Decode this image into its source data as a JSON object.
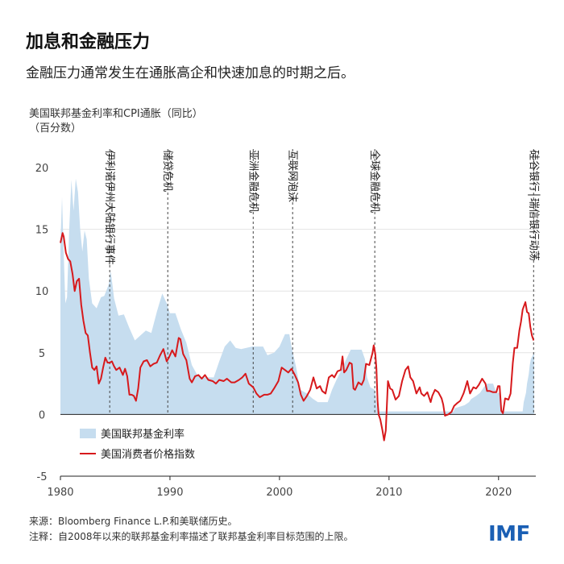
{
  "header": {
    "title": "加息和金融压力",
    "subtitle": "金融压力通常发生在通胀高企和快速加息的时期之后。"
  },
  "axis_title": {
    "line1": "美国联邦基金利率和CPI通胀（同比）",
    "line2": "（百分数）"
  },
  "footer": {
    "source": "来源：Bloomberg Finance L.P.和美联储历史。",
    "note": "注释：自2008年以来的联邦基金利率描述了联邦基金利率目标范围的上限。"
  },
  "logo": "IMF",
  "colors": {
    "fed_fill": "#c6ddef",
    "cpi_line": "#d7191c",
    "event_line": "#444444"
  },
  "chart_data": {
    "type": "area+line",
    "xlim": [
      1980,
      2023.4
    ],
    "ylim": [
      -5,
      20
    ],
    "x_ticks": [
      1980,
      1990,
      2000,
      2010,
      2020
    ],
    "y_ticks": [
      -5,
      0,
      5,
      10,
      15,
      20
    ],
    "legend": {
      "placement": "bottom-left",
      "entries": [
        "美国联邦基金利率",
        "美国消费者价格指数"
      ]
    },
    "events": [
      {
        "x": 1984.5,
        "label": "伊利诺伊州大陆银行事件"
      },
      {
        "x": 1989.8,
        "label": "储贷危机"
      },
      {
        "x": 1997.6,
        "label": "亚洲金融危机"
      },
      {
        "x": 2001.2,
        "label": "互联网泡沫"
      },
      {
        "x": 2008.7,
        "label": "全球金融危机"
      },
      {
        "x": 2023.2,
        "label": "硅谷银行|瑞信银行动荡"
      }
    ],
    "series": [
      {
        "name": "美国联邦基金利率",
        "kind": "area",
        "points": [
          [
            1980.0,
            13.8
          ],
          [
            1980.15,
            17.6
          ],
          [
            1980.3,
            13.0
          ],
          [
            1980.45,
            9.0
          ],
          [
            1980.6,
            9.5
          ],
          [
            1980.8,
            15.0
          ],
          [
            1981.0,
            19.0
          ],
          [
            1981.2,
            16.5
          ],
          [
            1981.4,
            19.1
          ],
          [
            1981.6,
            18.0
          ],
          [
            1981.8,
            15.0
          ],
          [
            1982.0,
            13.2
          ],
          [
            1982.2,
            14.9
          ],
          [
            1982.4,
            14.2
          ],
          [
            1982.6,
            11.0
          ],
          [
            1982.9,
            9.0
          ],
          [
            1983.3,
            8.6
          ],
          [
            1983.7,
            9.5
          ],
          [
            1984.0,
            9.6
          ],
          [
            1984.4,
            10.5
          ],
          [
            1984.6,
            11.6
          ],
          [
            1984.9,
            9.4
          ],
          [
            1985.3,
            8.0
          ],
          [
            1985.8,
            8.1
          ],
          [
            1986.3,
            7.0
          ],
          [
            1986.8,
            6.0
          ],
          [
            1987.3,
            6.4
          ],
          [
            1987.8,
            6.8
          ],
          [
            1988.3,
            6.6
          ],
          [
            1988.8,
            8.3
          ],
          [
            1989.3,
            9.8
          ],
          [
            1989.7,
            9.0
          ],
          [
            1990.0,
            8.2
          ],
          [
            1990.5,
            8.2
          ],
          [
            1991.0,
            6.9
          ],
          [
            1991.5,
            5.8
          ],
          [
            1992.0,
            4.0
          ],
          [
            1992.5,
            3.2
          ],
          [
            1993.0,
            3.0
          ],
          [
            1994.0,
            3.0
          ],
          [
            1994.5,
            4.3
          ],
          [
            1995.0,
            5.5
          ],
          [
            1995.5,
            6.0
          ],
          [
            1996.0,
            5.4
          ],
          [
            1996.5,
            5.3
          ],
          [
            1997.5,
            5.5
          ],
          [
            1998.5,
            5.5
          ],
          [
            1998.9,
            4.8
          ],
          [
            1999.5,
            5.0
          ],
          [
            2000.0,
            5.5
          ],
          [
            2000.5,
            6.5
          ],
          [
            2000.9,
            6.5
          ],
          [
            2001.1,
            5.5
          ],
          [
            2001.5,
            3.9
          ],
          [
            2001.9,
            2.0
          ],
          [
            2002.5,
            1.7
          ],
          [
            2003.0,
            1.3
          ],
          [
            2003.5,
            1.0
          ],
          [
            2004.4,
            1.0
          ],
          [
            2004.8,
            2.0
          ],
          [
            2005.2,
            2.8
          ],
          [
            2005.6,
            3.5
          ],
          [
            2006.0,
            4.3
          ],
          [
            2006.5,
            5.25
          ],
          [
            2007.5,
            5.25
          ],
          [
            2007.8,
            4.5
          ],
          [
            2008.0,
            3.0
          ],
          [
            2008.3,
            2.2
          ],
          [
            2008.7,
            2.0
          ],
          [
            2008.95,
            0.25
          ],
          [
            2015.9,
            0.25
          ],
          [
            2016.0,
            0.5
          ],
          [
            2016.9,
            0.75
          ],
          [
            2017.3,
            1.0
          ],
          [
            2017.5,
            1.25
          ],
          [
            2017.95,
            1.5
          ],
          [
            2018.3,
            1.75
          ],
          [
            2018.7,
            2.25
          ],
          [
            2019.0,
            2.5
          ],
          [
            2019.5,
            2.5
          ],
          [
            2019.6,
            2.25
          ],
          [
            2019.8,
            1.75
          ],
          [
            2020.1,
            1.75
          ],
          [
            2020.2,
            0.25
          ],
          [
            2022.2,
            0.25
          ],
          [
            2022.3,
            1.0
          ],
          [
            2022.5,
            1.75
          ],
          [
            2022.6,
            2.5
          ],
          [
            2022.75,
            3.25
          ],
          [
            2022.85,
            4.0
          ],
          [
            2022.95,
            4.5
          ],
          [
            2023.1,
            4.75
          ],
          [
            2023.25,
            5.0
          ]
        ]
      },
      {
        "name": "美国消费者价格指数",
        "kind": "line",
        "points": [
          [
            1980.0,
            13.9
          ],
          [
            1980.2,
            14.7
          ],
          [
            1980.3,
            14.4
          ],
          [
            1980.5,
            13.1
          ],
          [
            1980.7,
            12.6
          ],
          [
            1980.9,
            12.4
          ],
          [
            1981.1,
            11.4
          ],
          [
            1981.3,
            10.0
          ],
          [
            1981.5,
            10.8
          ],
          [
            1981.7,
            11.0
          ],
          [
            1981.9,
            8.9
          ],
          [
            1982.1,
            7.6
          ],
          [
            1982.3,
            6.6
          ],
          [
            1982.5,
            6.4
          ],
          [
            1982.7,
            5.0
          ],
          [
            1982.9,
            3.8
          ],
          [
            1983.1,
            3.6
          ],
          [
            1983.3,
            3.9
          ],
          [
            1983.5,
            2.5
          ],
          [
            1983.7,
            2.9
          ],
          [
            1983.9,
            3.8
          ],
          [
            1984.1,
            4.6
          ],
          [
            1984.3,
            4.2
          ],
          [
            1984.5,
            4.2
          ],
          [
            1984.7,
            4.3
          ],
          [
            1984.9,
            3.9
          ],
          [
            1985.1,
            3.6
          ],
          [
            1985.4,
            3.8
          ],
          [
            1985.7,
            3.2
          ],
          [
            1985.9,
            3.7
          ],
          [
            1986.1,
            3.1
          ],
          [
            1986.3,
            1.6
          ],
          [
            1986.5,
            1.6
          ],
          [
            1986.7,
            1.5
          ],
          [
            1986.9,
            1.1
          ],
          [
            1987.1,
            2.1
          ],
          [
            1987.3,
            3.8
          ],
          [
            1987.6,
            4.3
          ],
          [
            1987.9,
            4.4
          ],
          [
            1988.2,
            3.9
          ],
          [
            1988.5,
            4.1
          ],
          [
            1988.8,
            4.2
          ],
          [
            1989.1,
            4.8
          ],
          [
            1989.4,
            5.3
          ],
          [
            1989.7,
            4.3
          ],
          [
            1989.9,
            4.6
          ],
          [
            1990.2,
            5.2
          ],
          [
            1990.5,
            4.7
          ],
          [
            1990.8,
            6.2
          ],
          [
            1990.95,
            6.1
          ],
          [
            1991.2,
            4.9
          ],
          [
            1991.5,
            4.4
          ],
          [
            1991.8,
            2.9
          ],
          [
            1992.0,
            2.6
          ],
          [
            1992.3,
            3.1
          ],
          [
            1992.6,
            3.2
          ],
          [
            1992.9,
            2.9
          ],
          [
            1993.2,
            3.2
          ],
          [
            1993.5,
            2.8
          ],
          [
            1993.9,
            2.7
          ],
          [
            1994.2,
            2.5
          ],
          [
            1994.5,
            2.8
          ],
          [
            1994.9,
            2.7
          ],
          [
            1995.2,
            2.9
          ],
          [
            1995.6,
            2.6
          ],
          [
            1995.9,
            2.6
          ],
          [
            1996.3,
            2.8
          ],
          [
            1996.6,
            3.0
          ],
          [
            1996.9,
            3.3
          ],
          [
            1997.2,
            2.5
          ],
          [
            1997.6,
            2.2
          ],
          [
            1997.9,
            1.7
          ],
          [
            1998.2,
            1.4
          ],
          [
            1998.6,
            1.6
          ],
          [
            1998.9,
            1.6
          ],
          [
            1999.2,
            1.7
          ],
          [
            1999.5,
            2.1
          ],
          [
            1999.9,
            2.7
          ],
          [
            2000.2,
            3.8
          ],
          [
            2000.5,
            3.6
          ],
          [
            2000.8,
            3.4
          ],
          [
            2001.1,
            3.7
          ],
          [
            2001.4,
            3.2
          ],
          [
            2001.7,
            2.6
          ],
          [
            2001.95,
            1.6
          ],
          [
            2002.2,
            1.1
          ],
          [
            2002.5,
            1.5
          ],
          [
            2002.8,
            2.0
          ],
          [
            2003.1,
            3.0
          ],
          [
            2003.4,
            2.1
          ],
          [
            2003.7,
            2.3
          ],
          [
            2003.9,
            1.9
          ],
          [
            2004.2,
            1.7
          ],
          [
            2004.5,
            3.0
          ],
          [
            2004.8,
            3.2
          ],
          [
            2005.0,
            3.0
          ],
          [
            2005.3,
            3.5
          ],
          [
            2005.6,
            3.6
          ],
          [
            2005.75,
            4.7
          ],
          [
            2005.9,
            3.4
          ],
          [
            2006.1,
            3.6
          ],
          [
            2006.4,
            4.2
          ],
          [
            2006.6,
            4.1
          ],
          [
            2006.75,
            2.1
          ],
          [
            2006.9,
            2.0
          ],
          [
            2007.2,
            2.6
          ],
          [
            2007.5,
            2.4
          ],
          [
            2007.7,
            2.8
          ],
          [
            2007.9,
            4.1
          ],
          [
            2008.2,
            4.0
          ],
          [
            2008.5,
            5.0
          ],
          [
            2008.6,
            5.6
          ],
          [
            2008.75,
            4.9
          ],
          [
            2008.85,
            3.7
          ],
          [
            2008.95,
            1.1
          ],
          [
            2009.05,
            0.0
          ],
          [
            2009.2,
            -0.4
          ],
          [
            2009.4,
            -1.3
          ],
          [
            2009.55,
            -2.1
          ],
          [
            2009.7,
            -1.3
          ],
          [
            2009.9,
            2.7
          ],
          [
            2010.1,
            2.1
          ],
          [
            2010.3,
            2.0
          ],
          [
            2010.6,
            1.2
          ],
          [
            2010.9,
            1.5
          ],
          [
            2011.2,
            2.7
          ],
          [
            2011.5,
            3.6
          ],
          [
            2011.75,
            3.9
          ],
          [
            2011.95,
            3.0
          ],
          [
            2012.2,
            2.7
          ],
          [
            2012.5,
            1.7
          ],
          [
            2012.8,
            2.2
          ],
          [
            2012.95,
            1.7
          ],
          [
            2013.2,
            1.5
          ],
          [
            2013.5,
            1.8
          ],
          [
            2013.8,
            1.0
          ],
          [
            2013.95,
            1.5
          ],
          [
            2014.2,
            2.0
          ],
          [
            2014.5,
            1.8
          ],
          [
            2014.8,
            1.3
          ],
          [
            2014.95,
            0.8
          ],
          [
            2015.1,
            -0.1
          ],
          [
            2015.4,
            0.0
          ],
          [
            2015.7,
            0.2
          ],
          [
            2015.95,
            0.7
          ],
          [
            2016.2,
            0.9
          ],
          [
            2016.5,
            1.1
          ],
          [
            2016.8,
            1.7
          ],
          [
            2016.95,
            2.1
          ],
          [
            2017.15,
            2.7
          ],
          [
            2017.4,
            1.7
          ],
          [
            2017.7,
            2.2
          ],
          [
            2017.95,
            2.1
          ],
          [
            2018.2,
            2.4
          ],
          [
            2018.5,
            2.9
          ],
          [
            2018.8,
            2.5
          ],
          [
            2018.95,
            1.9
          ],
          [
            2019.2,
            1.9
          ],
          [
            2019.5,
            1.8
          ],
          [
            2019.8,
            1.8
          ],
          [
            2019.95,
            2.3
          ],
          [
            2020.1,
            2.3
          ],
          [
            2020.25,
            0.3
          ],
          [
            2020.4,
            0.1
          ],
          [
            2020.6,
            1.3
          ],
          [
            2020.9,
            1.2
          ],
          [
            2021.1,
            1.7
          ],
          [
            2021.3,
            4.2
          ],
          [
            2021.45,
            5.4
          ],
          [
            2021.7,
            5.4
          ],
          [
            2021.9,
            6.8
          ],
          [
            2022.05,
            7.5
          ],
          [
            2022.2,
            8.5
          ],
          [
            2022.45,
            9.1
          ],
          [
            2022.6,
            8.3
          ],
          [
            2022.75,
            8.2
          ],
          [
            2022.9,
            7.1
          ],
          [
            2023.05,
            6.4
          ],
          [
            2023.2,
            6.0
          ]
        ]
      }
    ]
  }
}
